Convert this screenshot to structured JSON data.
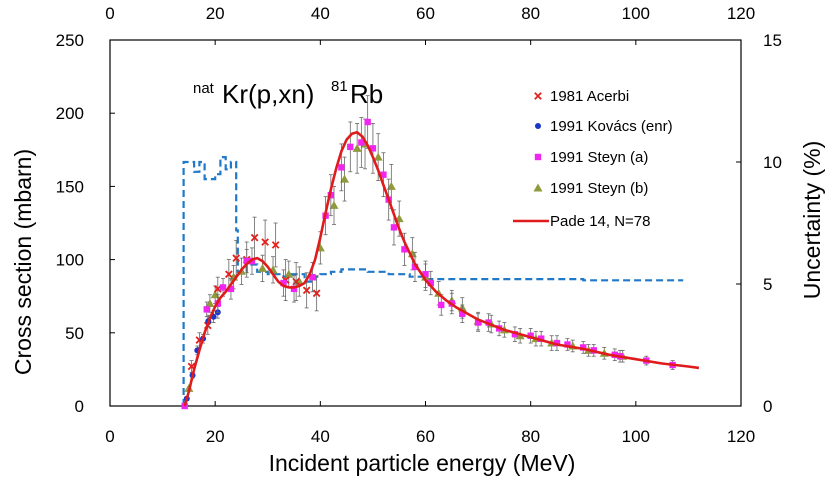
{
  "chart_data": {
    "type": "scatter",
    "annotation": {
      "pre": "nat",
      "main1": "Kr(p,xn)",
      "sup2": "81",
      "main2": "Rb"
    },
    "xlabel": "Incident particle energy (MeV)",
    "ylabel": "Cross section (mbarn)",
    "y2label": "Uncertainty (%)",
    "xlim": [
      0,
      120
    ],
    "ylim": [
      0,
      250
    ],
    "y2lim": [
      0,
      15
    ],
    "xticks": [
      "0",
      "20",
      "40",
      "60",
      "80",
      "100",
      "120"
    ],
    "yticks": [
      "0",
      "50",
      "100",
      "150",
      "200",
      "250"
    ],
    "y2ticks": [
      "0",
      "5",
      "10",
      "15"
    ],
    "legend_position": "right",
    "series": [
      {
        "name": "1981 Acerbi",
        "marker": "cross",
        "color": "#e8201c",
        "points": [
          [
            15.5,
            27,
            4
          ],
          [
            17.0,
            45,
            5
          ],
          [
            18.6,
            55,
            6
          ],
          [
            20.5,
            80,
            8
          ],
          [
            22.6,
            90,
            10
          ],
          [
            24.0,
            101,
            12
          ],
          [
            26.0,
            100,
            12
          ],
          [
            27.5,
            115,
            14
          ],
          [
            29.5,
            112,
            15
          ],
          [
            31.5,
            110,
            15
          ],
          [
            33.4,
            86,
            14
          ],
          [
            35.4,
            85,
            13
          ],
          [
            37.4,
            79,
            12
          ],
          [
            39.3,
            77,
            12
          ]
        ]
      },
      {
        "name": "1991 Kovács (enr)",
        "marker": "circle",
        "color": "#1a35c9",
        "points": [
          [
            14.6,
            5,
            1
          ],
          [
            15.7,
            21,
            2
          ],
          [
            16.6,
            38,
            3
          ],
          [
            17.7,
            46,
            3
          ],
          [
            18.7,
            58,
            4
          ],
          [
            19.7,
            61,
            4
          ],
          [
            20.5,
            64,
            4
          ]
        ]
      },
      {
        "name": "1991 Steyn (a)",
        "marker": "square",
        "color": "#f026f0",
        "points": [
          [
            14.2,
            0,
            1
          ],
          [
            18.4,
            66,
            5
          ],
          [
            20.5,
            70,
            6
          ],
          [
            21.5,
            81,
            6
          ],
          [
            23.0,
            80,
            7
          ],
          [
            26.0,
            99,
            8
          ],
          [
            27.0,
            99,
            9
          ],
          [
            33.0,
            84,
            9
          ],
          [
            35.0,
            80,
            9
          ],
          [
            38.5,
            88,
            10
          ],
          [
            41.0,
            130,
            13
          ],
          [
            42.0,
            144,
            14
          ],
          [
            44.0,
            163,
            16
          ],
          [
            45.7,
            177,
            17
          ],
          [
            47.8,
            180,
            17
          ],
          [
            49.0,
            194,
            18
          ],
          [
            50.0,
            176,
            17
          ],
          [
            52.0,
            158,
            15
          ],
          [
            53.0,
            141,
            14
          ],
          [
            54.0,
            122,
            12
          ],
          [
            56.0,
            107,
            11
          ],
          [
            58.0,
            95,
            10
          ],
          [
            60.0,
            90,
            9
          ],
          [
            61.0,
            84,
            8
          ],
          [
            63.0,
            69,
            7
          ],
          [
            65.0,
            70,
            7
          ],
          [
            67.0,
            63,
            6
          ],
          [
            70.0,
            57,
            6
          ],
          [
            72.0,
            57,
            6
          ],
          [
            74.0,
            53,
            5
          ],
          [
            77.0,
            49,
            5
          ],
          [
            80.0,
            48,
            5
          ],
          [
            82.0,
            46,
            5
          ],
          [
            85.0,
            43,
            5
          ],
          [
            87.0,
            42,
            4
          ],
          [
            90.0,
            40,
            4
          ],
          [
            92.0,
            38,
            4
          ],
          [
            96.0,
            35,
            4
          ],
          [
            97.0,
            34,
            4
          ],
          [
            102.0,
            31,
            3
          ],
          [
            107.0,
            28,
            3
          ]
        ]
      },
      {
        "name": "1991 Steyn (b)",
        "marker": "triangle",
        "color": "#8e9a3b",
        "points": [
          [
            15.0,
            12,
            1
          ],
          [
            19.0,
            70,
            6
          ],
          [
            20.0,
            76,
            6
          ],
          [
            23.5,
            88,
            8
          ],
          [
            25.0,
            92,
            9
          ],
          [
            29.0,
            94,
            9
          ],
          [
            31.0,
            93,
            9
          ],
          [
            34.0,
            90,
            9
          ],
          [
            36.0,
            85,
            10
          ],
          [
            40.0,
            108,
            11
          ],
          [
            42.6,
            137,
            13
          ],
          [
            44.6,
            155,
            15
          ],
          [
            47.0,
            176,
            17
          ],
          [
            48.5,
            179,
            17
          ],
          [
            51.0,
            170,
            16
          ],
          [
            53.5,
            150,
            15
          ],
          [
            55.0,
            128,
            12
          ],
          [
            57.5,
            104,
            11
          ],
          [
            60.0,
            88,
            9
          ],
          [
            62.5,
            77,
            8
          ],
          [
            65.0,
            72,
            7
          ],
          [
            67.0,
            67,
            7
          ],
          [
            70.0,
            58,
            6
          ],
          [
            72.5,
            56,
            6
          ],
          [
            75.0,
            52,
            5
          ],
          [
            78.0,
            48,
            5
          ],
          [
            81.0,
            46,
            5
          ],
          [
            84.0,
            43,
            5
          ],
          [
            88.0,
            41,
            4
          ],
          [
            91.0,
            38,
            4
          ],
          [
            94.0,
            36,
            4
          ],
          [
            97.5,
            34,
            4
          ]
        ]
      },
      {
        "name": "Pade 14, N=78",
        "type": "line",
        "color": "#e01b1b",
        "points": [
          [
            14.2,
            0
          ],
          [
            15,
            10
          ],
          [
            16,
            25
          ],
          [
            17,
            38
          ],
          [
            18,
            50
          ],
          [
            19,
            60
          ],
          [
            20,
            68
          ],
          [
            21,
            74
          ],
          [
            22,
            78
          ],
          [
            23,
            83
          ],
          [
            24,
            88
          ],
          [
            25,
            93
          ],
          [
            26,
            97
          ],
          [
            27,
            100
          ],
          [
            28,
            101
          ],
          [
            29,
            99
          ],
          [
            30,
            95
          ],
          [
            31,
            90
          ],
          [
            32,
            85
          ],
          [
            33,
            82
          ],
          [
            34,
            81
          ],
          [
            35,
            81
          ],
          [
            36,
            82
          ],
          [
            37,
            84
          ],
          [
            38,
            90
          ],
          [
            39,
            100
          ],
          [
            40,
            115
          ],
          [
            41,
            132
          ],
          [
            42,
            148
          ],
          [
            43,
            162
          ],
          [
            44,
            174
          ],
          [
            45,
            182
          ],
          [
            46,
            186
          ],
          [
            47,
            187
          ],
          [
            48,
            184
          ],
          [
            49,
            178
          ],
          [
            50,
            170
          ],
          [
            51,
            161
          ],
          [
            52,
            151
          ],
          [
            53,
            141
          ],
          [
            54,
            131
          ],
          [
            55,
            121
          ],
          [
            56,
            112
          ],
          [
            58,
            97
          ],
          [
            60,
            86
          ],
          [
            62,
            78
          ],
          [
            64,
            72
          ],
          [
            66,
            67
          ],
          [
            68,
            63
          ],
          [
            70,
            59
          ],
          [
            75,
            52
          ],
          [
            80,
            47
          ],
          [
            85,
            42
          ],
          [
            90,
            39
          ],
          [
            95,
            35
          ],
          [
            100,
            32
          ],
          [
            105,
            29
          ],
          [
            110,
            27
          ],
          [
            112,
            26
          ]
        ]
      },
      {
        "name": "",
        "type": "dashed-line",
        "axis": "right",
        "color": "#1f78c8",
        "points": [
          [
            14,
            0
          ],
          [
            14,
            10
          ],
          [
            16,
            10
          ],
          [
            16,
            9.6
          ],
          [
            17,
            9.6
          ],
          [
            17,
            10
          ],
          [
            18,
            10
          ],
          [
            18,
            9.3
          ],
          [
            20,
            9.3
          ],
          [
            20,
            9.5
          ],
          [
            21,
            9.5
          ],
          [
            21,
            10.2
          ],
          [
            22,
            10.2
          ],
          [
            22,
            9.7
          ],
          [
            23,
            9.7
          ],
          [
            23,
            10
          ],
          [
            24,
            10
          ],
          [
            24,
            7.2
          ],
          [
            24.3,
            7.2
          ],
          [
            24.3,
            5.5
          ],
          [
            26,
            5.5
          ],
          [
            26,
            5.8
          ],
          [
            28,
            5.8
          ],
          [
            28,
            5.5
          ],
          [
            30,
            5.5
          ],
          [
            30,
            5.4
          ],
          [
            33,
            5.4
          ],
          [
            33,
            5.3
          ],
          [
            34,
            5.3
          ],
          [
            34,
            5.4
          ],
          [
            37,
            5.4
          ],
          [
            37,
            5.1
          ],
          [
            39,
            5.1
          ],
          [
            39,
            5.3
          ],
          [
            40,
            5.3
          ],
          [
            40,
            5.4
          ],
          [
            42,
            5.4
          ],
          [
            42,
            5.5
          ],
          [
            44,
            5.5
          ],
          [
            44,
            5.6
          ],
          [
            49,
            5.6
          ],
          [
            49,
            5.5
          ],
          [
            53,
            5.5
          ],
          [
            53,
            5.4
          ],
          [
            57,
            5.4
          ],
          [
            57,
            5.3
          ],
          [
            60,
            5.3
          ],
          [
            60,
            5.2
          ],
          [
            90,
            5.2
          ],
          [
            90,
            5.15
          ],
          [
            109,
            5.15
          ]
        ]
      }
    ]
  }
}
